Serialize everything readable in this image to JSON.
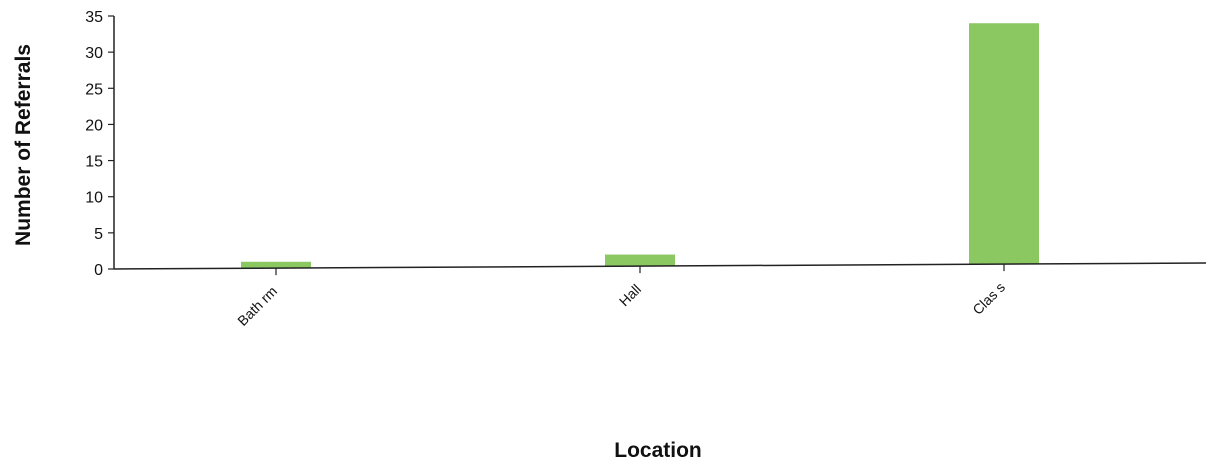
{
  "chart_data": {
    "type": "bar",
    "categories": [
      "Bathrm",
      "Hall",
      "Class"
    ],
    "category_labels_as_shown": [
      "Bath rm",
      "Hall",
      "Clas s"
    ],
    "values": [
      1,
      2,
      34
    ],
    "title": "",
    "xlabel": "Location",
    "ylabel": "Number of Referrals",
    "ylim": [
      0,
      35
    ],
    "yticks": [
      0,
      5,
      10,
      15,
      20,
      25,
      30,
      35
    ],
    "grid": false,
    "legend": "none",
    "bar_color": "#8cc862",
    "axis_color": "#222222"
  }
}
